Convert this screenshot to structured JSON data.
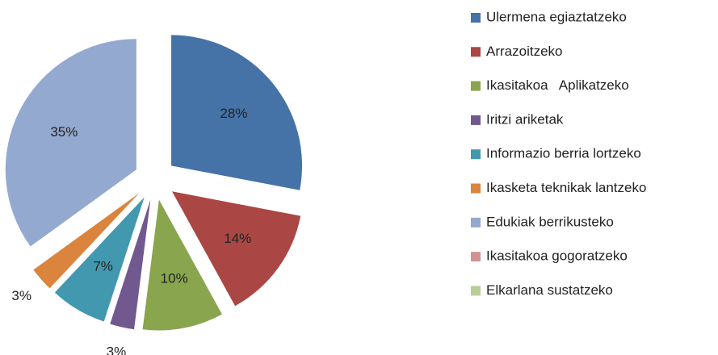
{
  "chart_data": {
    "type": "pie",
    "categories": [
      "Ulermena egiaztatzeko",
      "Arrazoitzeko",
      "Ikasitakoa   Aplikatzeko",
      "Iritzi ariketak",
      "Informazio berria lortzeko",
      "Ikasketa teknikak lantzeko",
      "Edukiak berrikusteko",
      "Ikasitakoa gogoratzeko",
      "Elkarlana sustatzeko"
    ],
    "values": [
      28,
      14,
      10,
      3,
      7,
      3,
      35,
      0,
      0
    ],
    "value_labels": [
      "28%",
      "14%",
      "10%",
      "3%",
      "7%",
      "3%",
      "35%",
      null,
      null
    ],
    "colors": [
      "#4572a7",
      "#aa4643",
      "#89a54e",
      "#71588f",
      "#4198af",
      "#db843d",
      "#93a9cf",
      "#d19392",
      "#b9cd96"
    ],
    "legend": "right"
  }
}
